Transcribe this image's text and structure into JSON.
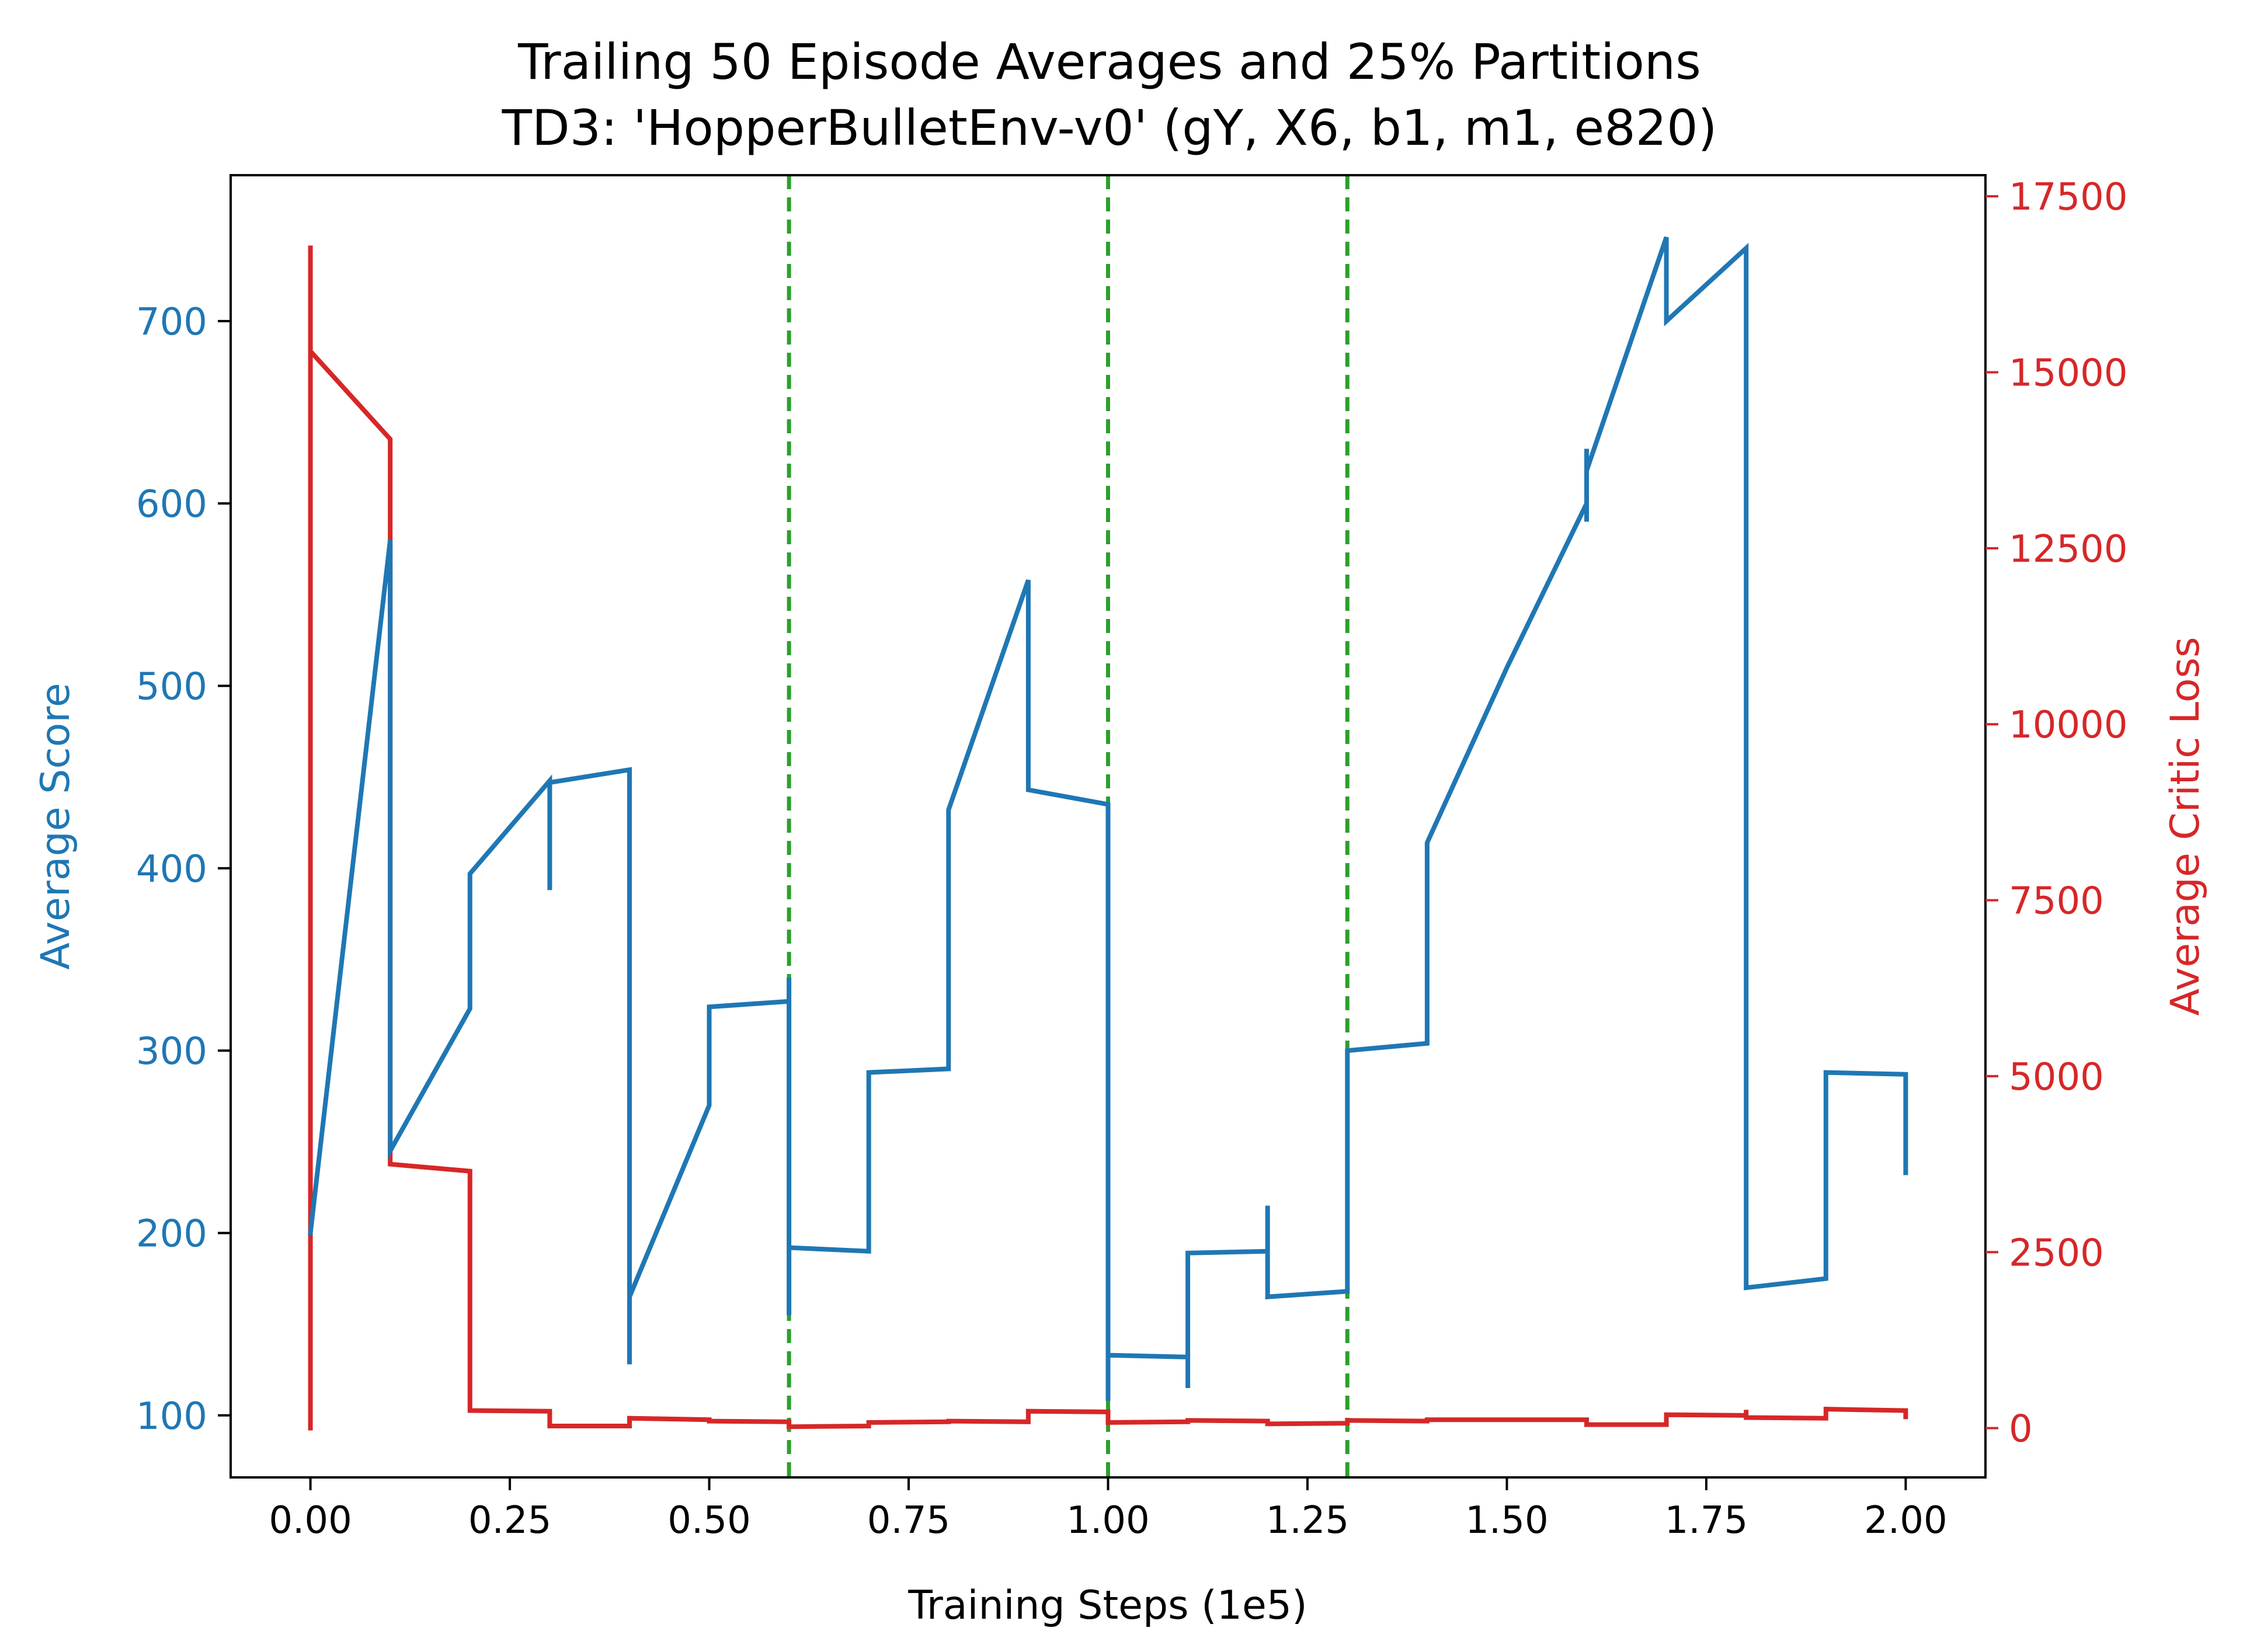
{
  "chart_data": {
    "type": "line",
    "title": "Trailing 50 Episode Averages and 25% Partitions",
    "subtitle": "TD3: 'HopperBulletEnv-v0' (gY, X6, b1, m1, e820)",
    "xlabel": "Training Steps (1e5)",
    "ylabel_left": "Average Score",
    "ylabel_right": "Average Critic Loss",
    "xlim": [
      -0.1,
      2.1
    ],
    "ylim_left": [
      66,
      780
    ],
    "ylim_right": [
      -700,
      17800
    ],
    "x_ticks": [
      "0.00",
      "0.25",
      "0.50",
      "0.75",
      "1.00",
      "1.25",
      "1.50",
      "1.75",
      "2.00"
    ],
    "y_left_ticks": [
      "100",
      "200",
      "300",
      "400",
      "500",
      "600",
      "700"
    ],
    "y_right_ticks": [
      "0",
      "2500",
      "5000",
      "7500",
      "10000",
      "12500",
      "15000",
      "17500"
    ],
    "colors": {
      "score": "#1f77b4",
      "loss": "#d62728",
      "partition": "#2ca02c"
    },
    "partitions": [
      0.6,
      1.0,
      1.3
    ],
    "score_series": {
      "axis": "left",
      "x": [
        0,
        0.1,
        0.1,
        0.2,
        0.2,
        0.3,
        0.3,
        0.3,
        0.4,
        0.4,
        0.4,
        0.5,
        0.5,
        0.6,
        0.6,
        0.6,
        0.6,
        0.7,
        0.7,
        0.8,
        0.8,
        0.9,
        0.9,
        1.0,
        1.0,
        1.0,
        1.1,
        1.1,
        1.1,
        1.2,
        1.2,
        1.2,
        1.3,
        1.3,
        1.4,
        1.4,
        1.4,
        1.5,
        1.6,
        1.6,
        1.6,
        1.6,
        1.7,
        1.7,
        1.8,
        1.8,
        1.9,
        1.9,
        2.0,
        2.0
      ],
      "y": [
        200,
        580,
        245,
        323,
        397,
        448,
        388,
        447,
        454,
        128,
        165,
        270,
        324,
        327,
        340,
        155,
        192,
        190,
        288,
        290,
        432,
        558,
        443,
        435,
        108,
        133,
        132,
        115,
        189,
        190,
        215,
        165,
        168,
        300,
        304,
        397,
        414,
        510,
        600,
        630,
        590,
        618,
        746,
        700,
        740,
        170,
        175,
        288,
        287,
        233
      ]
    },
    "loss_series": {
      "axis": "right",
      "x": [
        0,
        0,
        0,
        0.1,
        0.1,
        0.2,
        0.2,
        0.3,
        0.3,
        0.4,
        0.4,
        0.5,
        0.5,
        0.6,
        0.6,
        0.7,
        0.7,
        0.8,
        0.8,
        0.9,
        0.9,
        1.0,
        1.0,
        1.1,
        1.1,
        1.2,
        1.2,
        1.3,
        1.3,
        1.4,
        1.4,
        1.5,
        1.6,
        1.6,
        1.7,
        1.7,
        1.8,
        1.8,
        1.8,
        1.9,
        1.9,
        2.0,
        2.0
      ],
      "y": [
        0,
        16800,
        15300,
        14050,
        3750,
        3650,
        250,
        240,
        30,
        30,
        140,
        120,
        100,
        90,
        20,
        30,
        80,
        90,
        100,
        90,
        240,
        230,
        80,
        90,
        110,
        100,
        60,
        70,
        110,
        100,
        120,
        120,
        120,
        50,
        50,
        190,
        180,
        260,
        150,
        140,
        270,
        250,
        160
      ]
    }
  }
}
